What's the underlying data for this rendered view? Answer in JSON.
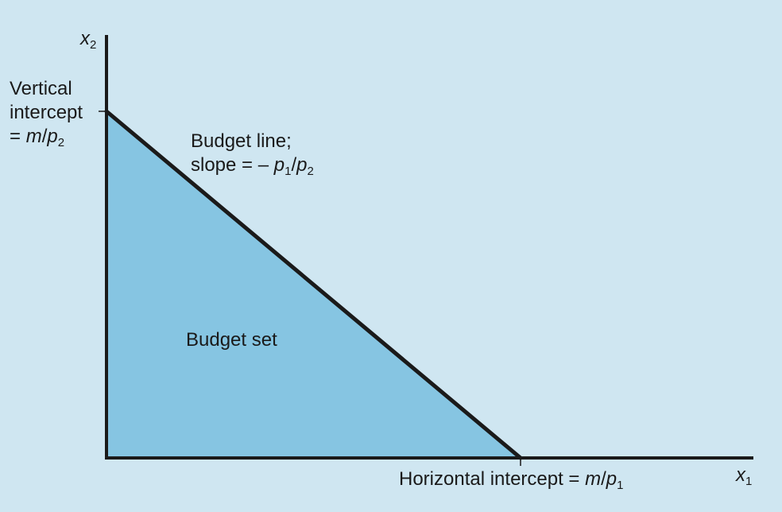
{
  "diagram": {
    "type": "budget-constraint",
    "colors": {
      "background": "#cfe6f1",
      "budget_set_fill": "#86c5e2",
      "line": "#1a1a1a"
    },
    "x_axis": {
      "var": "x",
      "sub": "1"
    },
    "y_axis": {
      "var": "x",
      "sub": "2"
    },
    "vertical_intercept": {
      "line1": "Vertical",
      "line2": "intercept",
      "eq": "= ",
      "m": "m",
      "slash": "/",
      "p": "p",
      "sub": "2"
    },
    "budget_line": {
      "line1": "Budget line;",
      "slope_text": "slope = – ",
      "p1": "p",
      "p1_sub": "1",
      "slash": "/",
      "p2": "p",
      "p2_sub": "2"
    },
    "budget_set": "Budget set",
    "horizontal_intercept": {
      "text": "Horizontal intercept = ",
      "m": "m",
      "slash": "/",
      "p": "p",
      "sub": "1"
    }
  }
}
